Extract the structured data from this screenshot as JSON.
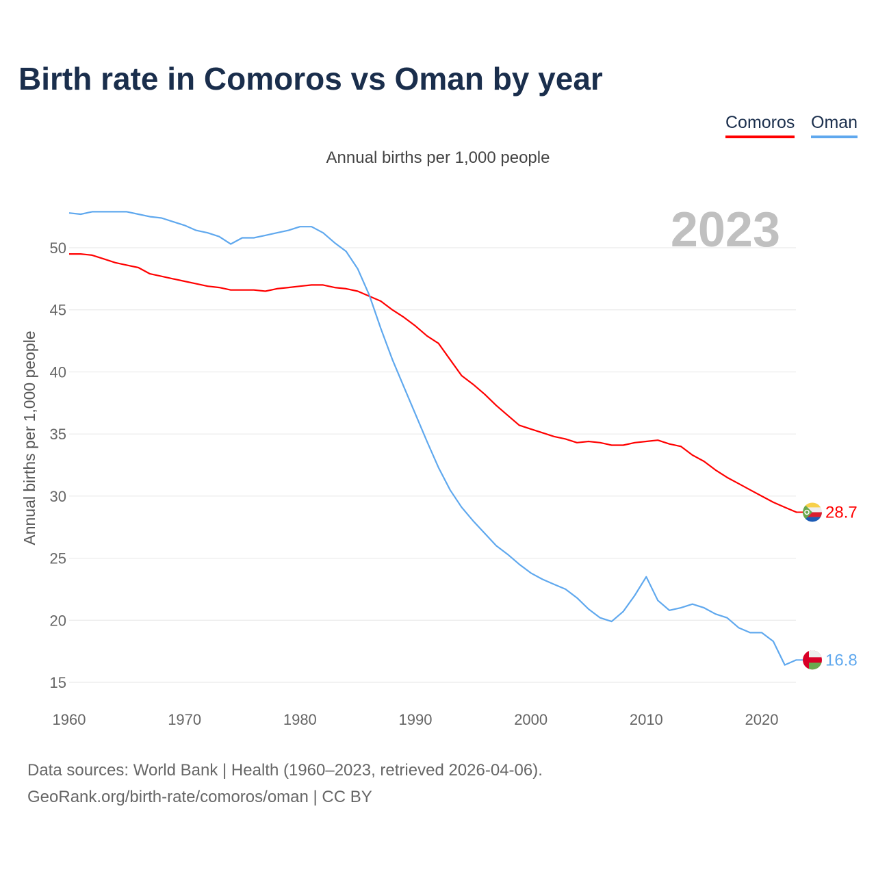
{
  "chart_data": {
    "type": "line",
    "title": "Birth rate in Comoros vs Oman by year",
    "subtitle": "Annual births per 1,000 people",
    "ylabel": "Annual births per 1,000 people",
    "xlabel": "",
    "year_label": "2023",
    "xlim": [
      1960,
      2023
    ],
    "ylim": [
      15,
      53
    ],
    "x_ticks": [
      1960,
      1970,
      1980,
      1990,
      2000,
      2010,
      2020
    ],
    "y_ticks": [
      15,
      20,
      25,
      30,
      35,
      40,
      45,
      50
    ],
    "grid": true,
    "legend_position": "top-right",
    "x_start": 1960,
    "series": [
      {
        "name": "Comoros",
        "color": "#ff0000",
        "end_label": "28.7",
        "values": [
          49.5,
          49.5,
          49.4,
          49.1,
          48.8,
          48.6,
          48.4,
          47.9,
          47.7,
          47.5,
          47.3,
          47.1,
          46.9,
          46.8,
          46.6,
          46.6,
          46.6,
          46.5,
          46.7,
          46.8,
          46.9,
          47.0,
          47.0,
          46.8,
          46.7,
          46.5,
          46.1,
          45.7,
          45.0,
          44.4,
          43.7,
          42.9,
          42.3,
          41.0,
          39.7,
          39.0,
          38.2,
          37.3,
          36.5,
          35.7,
          35.4,
          35.1,
          34.8,
          34.6,
          34.3,
          34.4,
          34.3,
          34.1,
          34.1,
          34.3,
          34.4,
          34.5,
          34.2,
          34.0,
          33.3,
          32.8,
          32.1,
          31.5,
          31.0,
          30.5,
          30.0,
          29.5,
          29.1,
          28.7
        ]
      },
      {
        "name": "Oman",
        "color": "#5fa8ee",
        "end_label": "16.8",
        "values": [
          52.8,
          52.7,
          52.9,
          52.9,
          52.9,
          52.9,
          52.7,
          52.5,
          52.4,
          52.1,
          51.8,
          51.4,
          51.2,
          50.9,
          50.3,
          50.8,
          50.8,
          51.0,
          51.2,
          51.4,
          51.7,
          51.7,
          51.2,
          50.4,
          49.7,
          48.3,
          46.2,
          43.5,
          41.0,
          38.8,
          36.6,
          34.4,
          32.3,
          30.5,
          29.1,
          28.0,
          27.0,
          26.0,
          25.3,
          24.5,
          23.8,
          23.3,
          22.9,
          22.5,
          21.8,
          20.9,
          20.2,
          19.9,
          20.7,
          22.0,
          23.5,
          21.6,
          20.8,
          21.0,
          21.3,
          21.0,
          20.5,
          20.2,
          19.4,
          19.0,
          19.0,
          18.3,
          16.4,
          16.8
        ]
      }
    ]
  },
  "footer": {
    "line1": "Data sources: World Bank | Health (1960–2023, retrieved 2026-04-06).",
    "line2": "GeoRank.org/birth-rate/comoros/oman | CC BY"
  }
}
